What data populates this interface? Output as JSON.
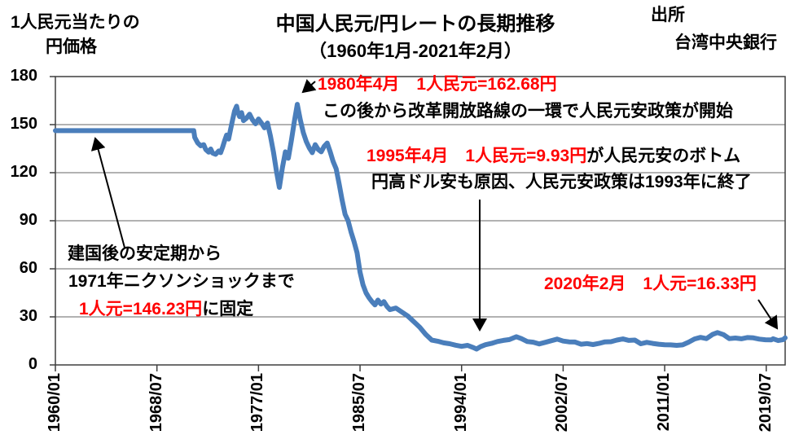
{
  "header": {
    "y_axis_title_line1": "1人民元当たりの",
    "y_axis_title_line2": "円価格",
    "title_line1": "中国人民元/円レートの長期推移",
    "title_line2": "（1960年1月-2021年2月）",
    "source_label": "出所",
    "source_value": "台湾中央銀行"
  },
  "annotations": {
    "peak1980": {
      "red": "1980年4月　1人民元=162.68円",
      "black": "この後から改革開放路線の一環で人民元安政策が開始"
    },
    "bottom1995": {
      "red": "1995年4月　1人民元=9.93円",
      "black_inline": "が人民元安のボトム",
      "black_line2": "円高ドル安も原因、人民元安政策は1993年に終了"
    },
    "fixed1960s": {
      "black_line1": "建国後の安定期から",
      "black_line2": "1971年ニクソンショックまで",
      "red": "1人元=146.23円",
      "black_suffix": "に固定"
    },
    "recent2020": {
      "red": "2020年2月　1人元=16.33円"
    }
  },
  "colors": {
    "line": "#4a7ebb",
    "red_text": "#ff0000",
    "gridline": "#848484",
    "axis": "#3f3f3f"
  },
  "chart_data": {
    "type": "line",
    "title": "中国人民元/円レートの長期推移（1960年1月-2021年2月）",
    "ylabel": "1人民元当たりの円価格",
    "source": "台湾中央銀行",
    "ylim": [
      0,
      180
    ],
    "yticks": [
      180,
      150,
      120,
      90,
      60,
      30,
      0
    ],
    "xticks": [
      "1960/01",
      "1968/07",
      "1977/01",
      "1985/07",
      "1994/01",
      "2002/07",
      "2011/01",
      "2019/07"
    ],
    "x_range": [
      "1960/01",
      "2021/02"
    ],
    "grid": true,
    "legend": false,
    "key_points": [
      {
        "date": "1960/01-1971/08",
        "value": 146.23,
        "note": "建国後の安定期から1971年ニクソンショックまで固定"
      },
      {
        "date": "1980/04",
        "value": 162.68,
        "note": "この後から改革開放路線の一環で人民元安政策が開始"
      },
      {
        "date": "1995/04",
        "value": 9.93,
        "note": "人民元安のボトム、円高ドル安も原因、人民元安政策は1993年に終了"
      },
      {
        "date": "2020/02",
        "value": 16.33,
        "note": ""
      }
    ],
    "series": [
      {
        "name": "人民元/円レート",
        "color": "#4a7ebb",
        "points": [
          [
            "1960/01",
            146.23
          ],
          [
            "1971/08",
            146.23
          ],
          [
            "1971/09",
            142
          ],
          [
            "1971/12",
            138.5
          ],
          [
            "1972/03",
            136.8
          ],
          [
            "1972/06",
            137.5
          ],
          [
            "1972/08",
            134.5
          ],
          [
            "1972/11",
            132.8
          ],
          [
            "1973/01",
            134.8
          ],
          [
            "1973/03",
            132.2
          ],
          [
            "1973/06",
            131.5
          ],
          [
            "1973/09",
            133.5
          ],
          [
            "1973/11",
            132.5
          ],
          [
            "1974/01",
            136
          ],
          [
            "1974/03",
            140
          ],
          [
            "1974/05",
            143.5
          ],
          [
            "1974/07",
            141
          ],
          [
            "1974/09",
            147
          ],
          [
            "1974/11",
            153
          ],
          [
            "1975/01",
            158.5
          ],
          [
            "1975/03",
            161.5
          ],
          [
            "1975/04",
            158.5
          ],
          [
            "1975/06",
            155
          ],
          [
            "1975/08",
            157.5
          ],
          [
            "1975/10",
            152.5
          ],
          [
            "1976/01",
            154
          ],
          [
            "1976/04",
            156.5
          ],
          [
            "1976/07",
            153
          ],
          [
            "1976/10",
            150.5
          ],
          [
            "1977/01",
            153.5
          ],
          [
            "1977/04",
            151
          ],
          [
            "1977/07",
            148
          ],
          [
            "1977/10",
            151
          ],
          [
            "1978/01",
            143
          ],
          [
            "1978/04",
            133
          ],
          [
            "1978/07",
            121
          ],
          [
            "1978/10",
            110.8
          ],
          [
            "1979/01",
            123
          ],
          [
            "1979/04",
            133
          ],
          [
            "1979/07",
            129
          ],
          [
            "1979/10",
            140
          ],
          [
            "1980/01",
            152
          ],
          [
            "1980/04",
            162.68
          ],
          [
            "1980/07",
            153
          ],
          [
            "1980/10",
            145
          ],
          [
            "1981/01",
            139.5
          ],
          [
            "1981/04",
            135.5
          ],
          [
            "1981/07",
            132.5
          ],
          [
            "1981/10",
            137.5
          ],
          [
            "1982/01",
            134.5
          ],
          [
            "1982/04",
            133
          ],
          [
            "1982/07",
            136.5
          ],
          [
            "1982/10",
            138.5
          ],
          [
            "1983/01",
            133
          ],
          [
            "1983/04",
            127
          ],
          [
            "1983/07",
            122.5
          ],
          [
            "1983/10",
            113
          ],
          [
            "1984/01",
            103
          ],
          [
            "1984/04",
            94
          ],
          [
            "1984/07",
            90
          ],
          [
            "1984/10",
            83
          ],
          [
            "1985/01",
            77
          ],
          [
            "1985/04",
            70
          ],
          [
            "1985/07",
            58
          ],
          [
            "1985/10",
            50
          ],
          [
            "1986/01",
            45
          ],
          [
            "1986/04",
            42
          ],
          [
            "1986/07",
            39.5
          ],
          [
            "1986/10",
            37.5
          ],
          [
            "1987/01",
            40.5
          ],
          [
            "1987/04",
            38
          ],
          [
            "1987/07",
            39.5
          ],
          [
            "1987/10",
            36.5
          ],
          [
            "1988/01",
            34.5
          ],
          [
            "1988/07",
            35.5
          ],
          [
            "1989/01",
            33
          ],
          [
            "1989/07",
            30.5
          ],
          [
            "1990/01",
            27
          ],
          [
            "1990/07",
            23.5
          ],
          [
            "1991/01",
            19
          ],
          [
            "1991/07",
            15.5
          ],
          [
            "1992/01",
            14.8
          ],
          [
            "1992/07",
            13.8
          ],
          [
            "1993/01",
            13.2
          ],
          [
            "1993/07",
            12.3
          ],
          [
            "1994/01",
            11.6
          ],
          [
            "1994/07",
            12.2
          ],
          [
            "1995/01",
            10.8
          ],
          [
            "1995/04",
            9.93
          ],
          [
            "1995/08",
            11.4
          ],
          [
            "1996/01",
            12.6
          ],
          [
            "1996/07",
            13.4
          ],
          [
            "1997/01",
            14.6
          ],
          [
            "1997/07",
            15.3
          ],
          [
            "1998/01",
            15.8
          ],
          [
            "1998/08",
            17.6
          ],
          [
            "1999/01",
            16.4
          ],
          [
            "1999/07",
            14.6
          ],
          [
            "2000/01",
            14.2
          ],
          [
            "2000/07",
            13.1
          ],
          [
            "2001/01",
            14.1
          ],
          [
            "2001/07",
            15.1
          ],
          [
            "2002/01",
            16.1
          ],
          [
            "2002/07",
            14.9
          ],
          [
            "2003/01",
            14.4
          ],
          [
            "2003/07",
            14.3
          ],
          [
            "2004/01",
            12.9
          ],
          [
            "2004/07",
            13.3
          ],
          [
            "2005/01",
            12.7
          ],
          [
            "2005/07",
            13.4
          ],
          [
            "2006/01",
            14.4
          ],
          [
            "2006/07",
            14.5
          ],
          [
            "2007/01",
            15.5
          ],
          [
            "2007/07",
            16.2
          ],
          [
            "2008/01",
            15.3
          ],
          [
            "2008/07",
            15.5
          ],
          [
            "2009/01",
            13.2
          ],
          [
            "2009/07",
            14.1
          ],
          [
            "2010/01",
            13.4
          ],
          [
            "2010/07",
            12.9
          ],
          [
            "2011/01",
            12.6
          ],
          [
            "2011/07",
            12.5
          ],
          [
            "2012/01",
            12.2
          ],
          [
            "2012/07",
            12.5
          ],
          [
            "2013/01",
            14.2
          ],
          [
            "2013/07",
            16.2
          ],
          [
            "2014/01",
            17.2
          ],
          [
            "2014/07",
            16.4
          ],
          [
            "2015/01",
            19.0
          ],
          [
            "2015/06",
            20.2
          ],
          [
            "2015/12",
            18.9
          ],
          [
            "2016/06",
            16.4
          ],
          [
            "2016/12",
            16.8
          ],
          [
            "2017/06",
            16.3
          ],
          [
            "2017/12",
            17.1
          ],
          [
            "2018/06",
            16.9
          ],
          [
            "2018/12",
            16.1
          ],
          [
            "2019/06",
            15.7
          ],
          [
            "2019/12",
            15.6
          ],
          [
            "2020/02",
            16.33
          ],
          [
            "2020/07",
            15.2
          ],
          [
            "2020/12",
            15.8
          ],
          [
            "2021/02",
            16.9
          ]
        ]
      }
    ]
  }
}
